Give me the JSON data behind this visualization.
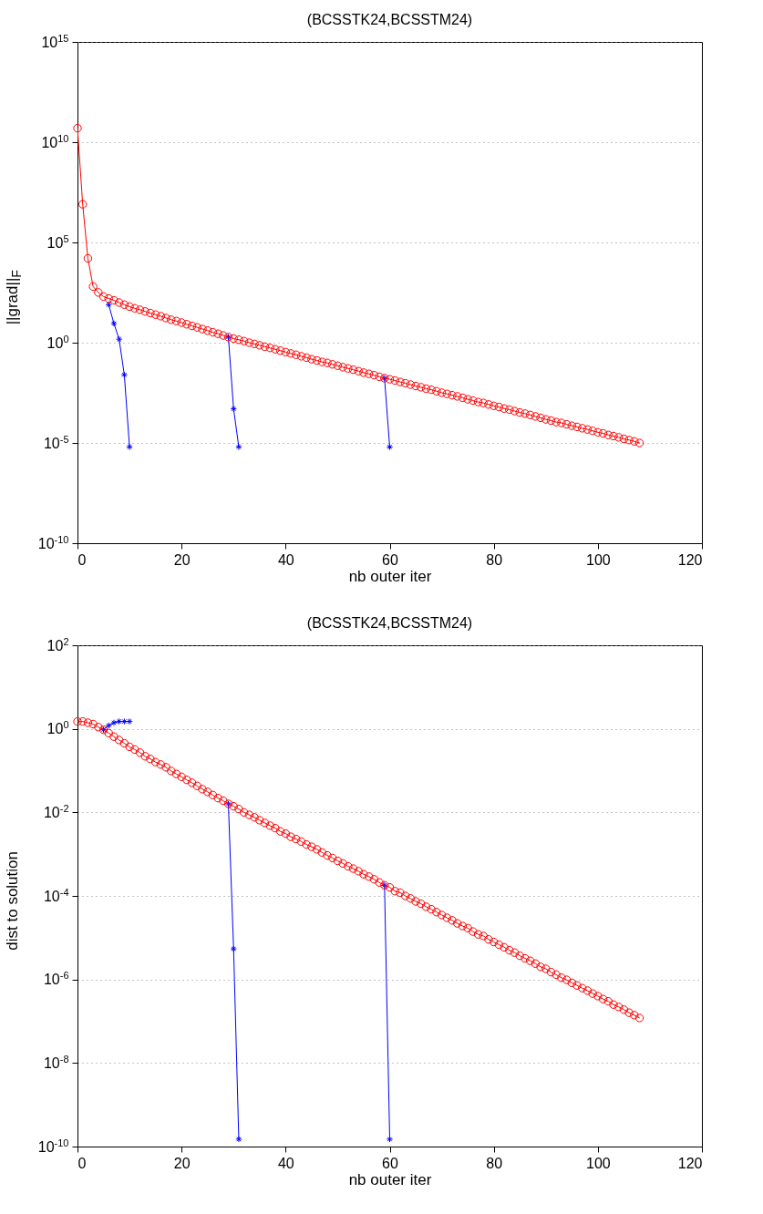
{
  "chart_data": [
    {
      "type": "line",
      "title": "(BCSSTK24,BCSSTM24)",
      "xlabel": "nb outer iter",
      "ylabel": "||grad||$_{F}$",
      "log": "y",
      "grid": "y",
      "line_style": "solid",
      "xlim": [
        0,
        120
      ],
      "xticks": [
        0,
        20,
        40,
        60,
        80,
        100,
        120
      ],
      "ylim": [
        1e-10,
        1000000000000000.0
      ],
      "yticks": [
        {
          "value": 1e-10,
          "label": "10$^{-10}$"
        },
        {
          "value": 1e-05,
          "label": "10$^{-5}$"
        },
        {
          "value": 1,
          "label": "10$^{0}$"
        },
        {
          "value": 100000.0,
          "label": "10$^{5}$"
        },
        {
          "value": 10000000000.0,
          "label": "10$^{10}$"
        },
        {
          "value": 1000000000000000.0,
          "label": "10$^{15}$"
        }
      ],
      "x": [
        0,
        1,
        2,
        3,
        4,
        5,
        6,
        7,
        8,
        9,
        10,
        11,
        12,
        13,
        14,
        15,
        16,
        17,
        18,
        19,
        20,
        21,
        22,
        23,
        24,
        25,
        26,
        27,
        28,
        29,
        30,
        31,
        32,
        33,
        34,
        35,
        36,
        37,
        38,
        39,
        40,
        41,
        42,
        43,
        44,
        45,
        46,
        47,
        48,
        49,
        50,
        51,
        52,
        53,
        54,
        55,
        56,
        57,
        58,
        59,
        60,
        61,
        62,
        63,
        64,
        65,
        66,
        67,
        68,
        69,
        70,
        71,
        72,
        73,
        74,
        75,
        76,
        77,
        78,
        79,
        80,
        81,
        82,
        83,
        84,
        85,
        86,
        87,
        88,
        89,
        90,
        91,
        92,
        93,
        94,
        95,
        96,
        97,
        98,
        99,
        100,
        101,
        102,
        103,
        104,
        105,
        106,
        107,
        108
      ],
      "series": [
        {
          "color": "#0000ff",
          "marker": "cross",
          "x": [
            6,
            7,
            8,
            9,
            10
          ],
          "values": [
            79,
            9.1,
            1.5,
            0.025,
            6.3e-06
          ]
        },
        {
          "color": "#0000ff",
          "marker": "cross",
          "x": [
            29,
            30,
            31
          ],
          "values": [
            1.9,
            0.0005,
            6.3e-06
          ]
        },
        {
          "color": "#0000ff",
          "marker": "cross",
          "x": [
            59,
            60
          ],
          "values": [
            0.017,
            6.3e-06
          ]
        },
        {
          "color": "#ff0000",
          "marker": "circle",
          "values": [
            50000000000.0,
            8000000.0,
            16000.0,
            630,
            320,
            200,
            160,
            130,
            100,
            79,
            63,
            52,
            44,
            36,
            30,
            25,
            21,
            17,
            14,
            12,
            10,
            8.3,
            6.9,
            5.8,
            4.8,
            4.0,
            3.3,
            2.8,
            2.3,
            1.9,
            1.6,
            1.4,
            1.2,
            1.0,
            0.87,
            0.74,
            0.63,
            0.55,
            0.47,
            0.4,
            0.34,
            0.29,
            0.25,
            0.21,
            0.18,
            0.15,
            0.13,
            0.11,
            0.098,
            0.083,
            0.071,
            0.06,
            0.052,
            0.045,
            0.038,
            0.032,
            0.028,
            0.024,
            0.02,
            0.017,
            0.015,
            0.013,
            0.011,
            0.0095,
            0.0081,
            0.0069,
            0.006,
            0.0051,
            0.0045,
            0.0038,
            0.0032,
            0.0028,
            0.0024,
            0.0021,
            0.0018,
            0.0015,
            0.0013,
            0.0011,
            0.00098,
            0.00083,
            0.00071,
            0.00062,
            0.00052,
            0.00046,
            0.00039,
            0.00033,
            0.00029,
            0.00025,
            0.00021,
            0.00018,
            0.00015,
            0.00013,
            0.00011,
            0.0001,
            8.5e-05,
            7.2e-05,
            6.3e-05,
            5.4e-05,
            4.7e-05,
            4e-05,
            3.4e-05,
            3e-05,
            2.5e-05,
            2.2e-05,
            1.9e-05,
            1.6e-05,
            1.4e-05,
            1.2e-05,
            1e-05
          ]
        }
      ]
    },
    {
      "type": "line",
      "title": "(BCSSTK24,BCSSTM24)",
      "xlabel": "nb outer iter",
      "ylabel": "dist to solution",
      "log": "y",
      "grid": "y",
      "line_style": "solid",
      "xlim": [
        0,
        120
      ],
      "xticks": [
        0,
        20,
        40,
        60,
        80,
        100,
        120
      ],
      "ylim": [
        1e-10,
        100
      ],
      "yticks": [
        {
          "value": 1e-10,
          "label": "10$^{-10}$"
        },
        {
          "value": 1e-08,
          "label": "10$^{-8}$"
        },
        {
          "value": 1e-06,
          "label": "10$^{-6}$"
        },
        {
          "value": 0.0001,
          "label": "10$^{-4}$"
        },
        {
          "value": 0.01,
          "label": "10$^{-2}$"
        },
        {
          "value": 1,
          "label": "10$^{0}$"
        },
        {
          "value": 100,
          "label": "10$^{2}$"
        }
      ],
      "x": [
        0,
        1,
        2,
        3,
        4,
        5,
        6,
        7,
        8,
        9,
        10,
        11,
        12,
        13,
        14,
        15,
        16,
        17,
        18,
        19,
        20,
        21,
        22,
        23,
        24,
        25,
        26,
        27,
        28,
        29,
        30,
        31,
        32,
        33,
        34,
        35,
        36,
        37,
        38,
        39,
        40,
        41,
        42,
        43,
        44,
        45,
        46,
        47,
        48,
        49,
        50,
        51,
        52,
        53,
        54,
        55,
        56,
        57,
        58,
        59,
        60,
        61,
        62,
        63,
        64,
        65,
        66,
        67,
        68,
        69,
        70,
        71,
        72,
        73,
        74,
        75,
        76,
        77,
        78,
        79,
        80,
        81,
        82,
        83,
        84,
        85,
        86,
        87,
        88,
        89,
        90,
        91,
        92,
        93,
        94,
        95,
        96,
        97,
        98,
        99,
        100,
        101,
        102,
        103,
        104,
        105,
        106,
        107,
        108
      ],
      "series": [
        {
          "color": "#0000ff",
          "marker": "cross",
          "x": [
            5,
            6,
            7,
            8,
            9,
            10
          ],
          "values": [
            0.95,
            1.2,
            1.4,
            1.5,
            1.5,
            1.5
          ]
        },
        {
          "color": "#0000ff",
          "marker": "cross",
          "x": [
            29,
            30,
            31
          ],
          "values": [
            0.016,
            5.4e-06,
            1.5e-10
          ]
        },
        {
          "color": "#0000ff",
          "marker": "cross",
          "x": [
            59,
            60
          ],
          "values": [
            0.00018,
            1.5e-10
          ]
        },
        {
          "color": "#ff0000",
          "marker": "circle",
          "values": [
            1.5,
            1.5,
            1.4,
            1.3,
            1.1,
            0.95,
            0.79,
            0.65,
            0.54,
            0.45,
            0.37,
            0.32,
            0.27,
            0.22,
            0.19,
            0.16,
            0.14,
            0.12,
            0.098,
            0.083,
            0.071,
            0.06,
            0.051,
            0.043,
            0.036,
            0.031,
            0.026,
            0.022,
            0.019,
            0.016,
            0.014,
            0.012,
            0.01,
            0.0087,
            0.0076,
            0.0065,
            0.0056,
            0.0048,
            0.0042,
            0.0035,
            0.0031,
            0.0026,
            0.0023,
            0.002,
            0.0017,
            0.0015,
            0.0013,
            0.0011,
            0.00093,
            0.00081,
            0.00069,
            0.0006,
            0.00051,
            0.00045,
            0.00039,
            0.00033,
            0.00029,
            0.00025,
            0.00021,
            0.00018,
            0.00016,
            0.00013,
            0.00012,
            0.0001,
            8.7e-05,
            7.4e-05,
            6.5e-05,
            5.5e-05,
            4.8e-05,
            4.1e-05,
            3.5e-05,
            3e-05,
            2.6e-05,
            2.2e-05,
            1.9e-05,
            1.7e-05,
            1.4e-05,
            1.2e-05,
            1.1e-05,
            9.1e-06,
            7.9e-06,
            6.8e-06,
            5.9e-06,
            5e-06,
            4.4e-06,
            3.7e-06,
            3.2e-06,
            2.8e-06,
            2.4e-06,
            2e-06,
            1.8e-06,
            1.5e-06,
            1.3e-06,
            1.1e-06,
            9.8e-07,
            8.3e-07,
            7.2e-07,
            6.2e-07,
            5.4e-07,
            4.6e-07,
            4e-07,
            3.4e-07,
            3e-07,
            2.5e-07,
            2.2e-07,
            1.9e-07,
            1.6e-07,
            1.4e-07,
            1.2e-07
          ]
        }
      ]
    }
  ]
}
